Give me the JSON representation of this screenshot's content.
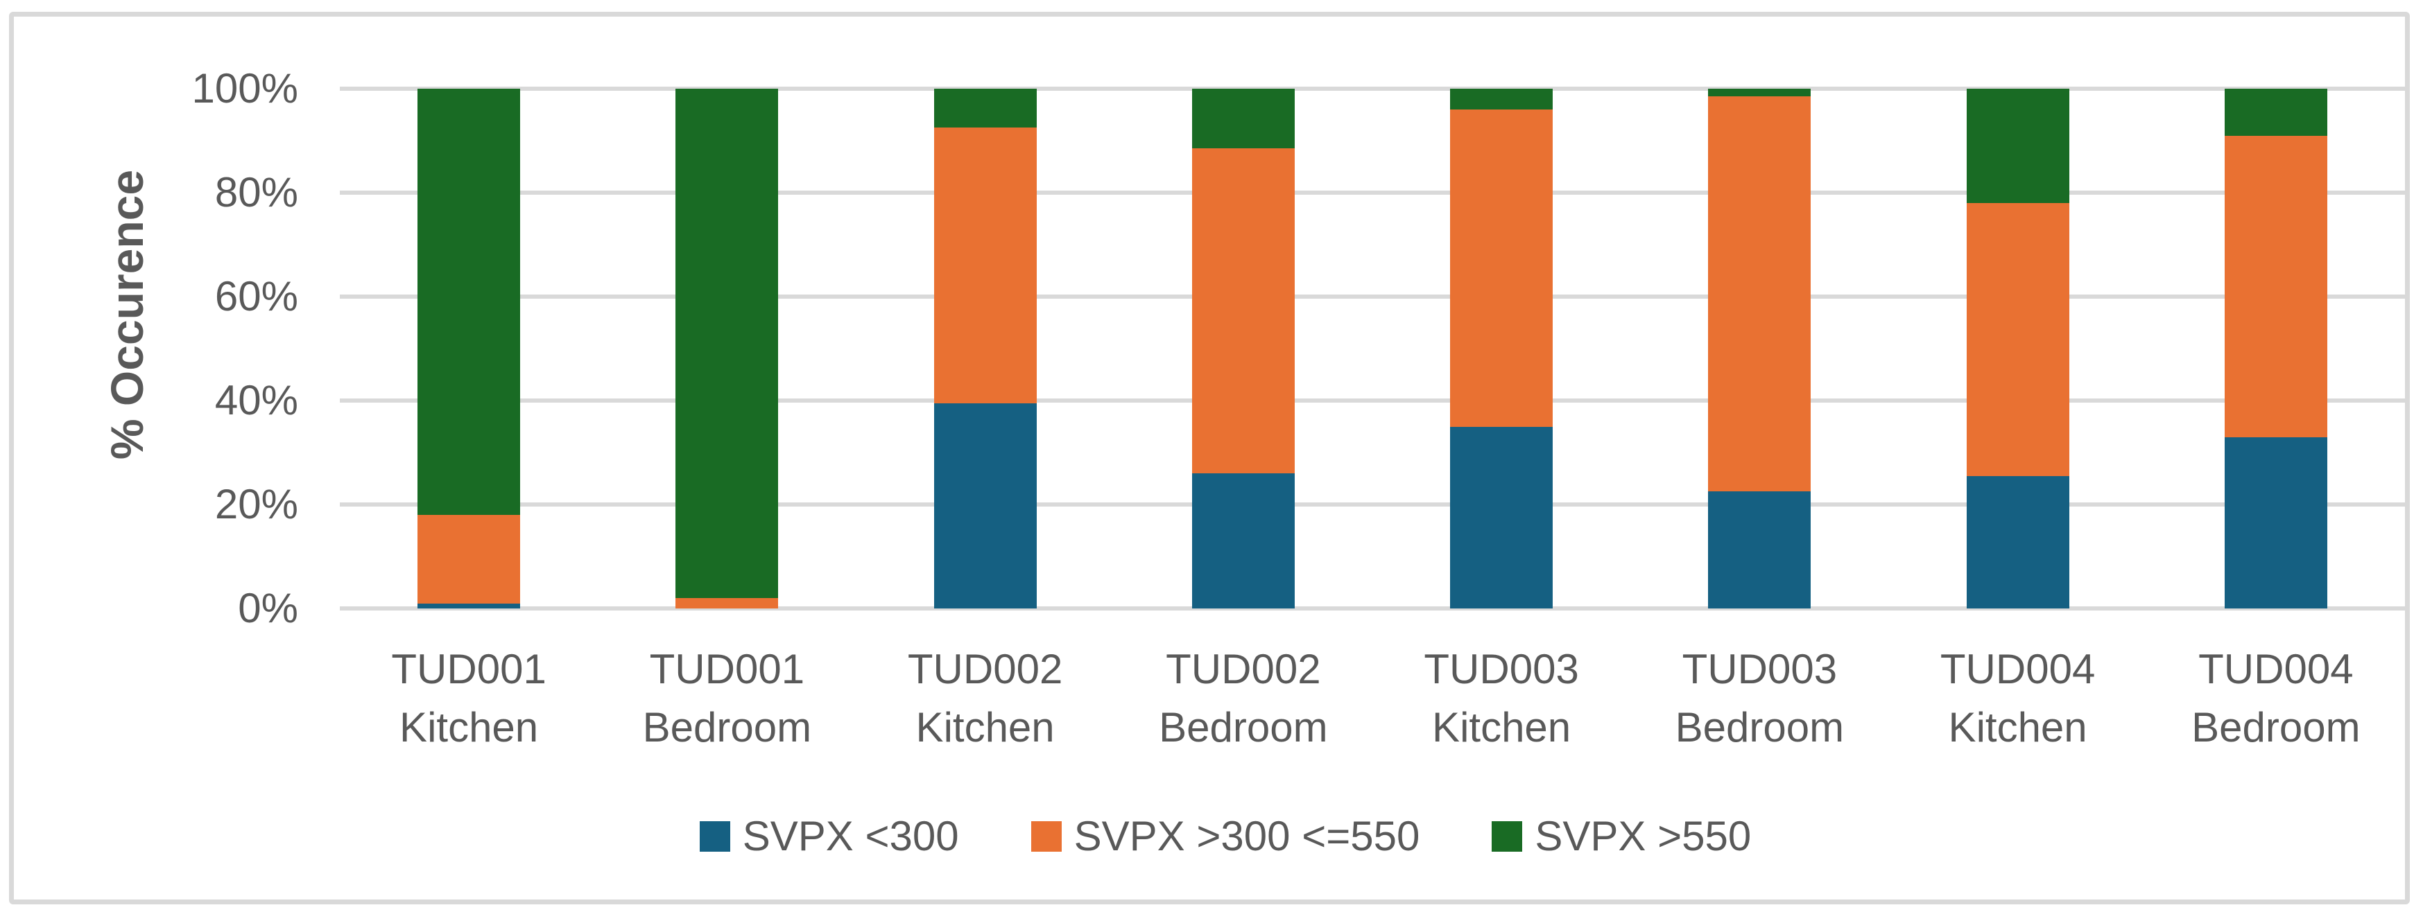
{
  "chart_data": {
    "type": "bar",
    "stacked": true,
    "stacked_mode": "percent",
    "title": "",
    "xlabel": "",
    "ylabel": "% Occurence",
    "ylim": [
      0,
      100
    ],
    "y_tick_step": 20,
    "y_ticks": [
      "0%",
      "20%",
      "40%",
      "60%",
      "80%",
      "100%"
    ],
    "grid": true,
    "legend_position": "bottom",
    "categories": [
      [
        "TUD001",
        "Kitchen"
      ],
      [
        "TUD001",
        "Bedroom"
      ],
      [
        "TUD002",
        "Kitchen"
      ],
      [
        "TUD002",
        "Bedroom"
      ],
      [
        "TUD003",
        "Kitchen"
      ],
      [
        "TUD003",
        "Bedroom"
      ],
      [
        "TUD004",
        "Kitchen"
      ],
      [
        "TUD004",
        "Bedroom"
      ]
    ],
    "series": [
      {
        "name": "SVPX <300",
        "color": "#156082",
        "values": [
          1,
          0,
          39.5,
          26,
          35,
          22.5,
          25.5,
          33
        ]
      },
      {
        "name": "SVPX >300 <=550",
        "color": "#E97132",
        "values": [
          17,
          2,
          53,
          62.5,
          61,
          76,
          52.5,
          58
        ]
      },
      {
        "name": "SVPX >550",
        "color": "#196B24",
        "values": [
          82,
          98,
          7.5,
          11.5,
          4,
          1.5,
          22,
          9
        ]
      }
    ],
    "colors": {
      "gridline": "#D9D9D9",
      "frame_border": "#D9D9D9",
      "axis_text": "#595959",
      "background": "#FFFFFF"
    }
  }
}
